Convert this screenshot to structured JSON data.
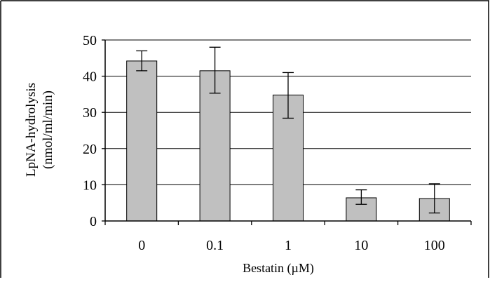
{
  "chart_data": {
    "type": "bar",
    "title": "",
    "xlabel": "Bestatin (µM)",
    "ylabel_lines": [
      "LpNA-hydrolysis",
      "(nmol/ml/min)"
    ],
    "categories": [
      "0",
      "0.1",
      "1",
      "10",
      "100"
    ],
    "values": [
      44.2,
      41.5,
      34.8,
      6.4,
      6.2
    ],
    "error_low": [
      41.5,
      35.3,
      28.4,
      4.6,
      2.2
    ],
    "error_high": [
      47.0,
      48.0,
      41.0,
      8.6,
      10.3
    ],
    "y_ticks": [
      "0",
      "10",
      "20",
      "30",
      "40",
      "50"
    ],
    "ylim": [
      0,
      50
    ],
    "grid": true,
    "legend": "none",
    "bar_color": "#c0c0c0",
    "border_color": "#000000"
  }
}
